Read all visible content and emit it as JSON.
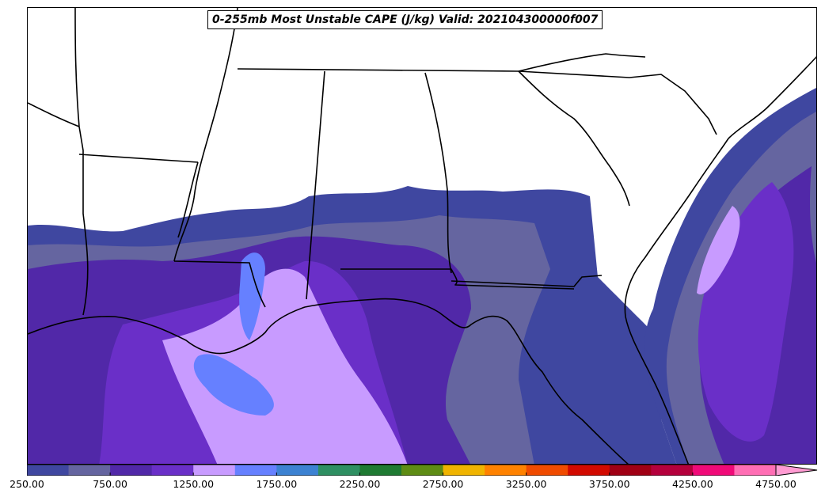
{
  "title": "0-255mb Most Unstable CAPE (J/kg) Valid: 202104300000f007",
  "colorbar": {
    "min": 250,
    "max": 5000,
    "step": 250,
    "extend": "max",
    "colors": [
      "#3f47a0",
      "#6565a0",
      "#5128a8",
      "#6a2fc8",
      "#c89bff",
      "#6680ff",
      "#3c82d2",
      "#2e8f62",
      "#1e7a32",
      "#5e8c14",
      "#f0b400",
      "#ff8200",
      "#f04b00",
      "#d20a00",
      "#a00014",
      "#b4003c",
      "#f00a78",
      "#ff6eb4",
      "#ff9bd2"
    ],
    "tick_labels": [
      "250.00",
      "750.00",
      "1250.00",
      "1750.00",
      "2250.00",
      "2750.00",
      "3250.00",
      "3750.00",
      "4250.00",
      "4750.00"
    ]
  }
}
